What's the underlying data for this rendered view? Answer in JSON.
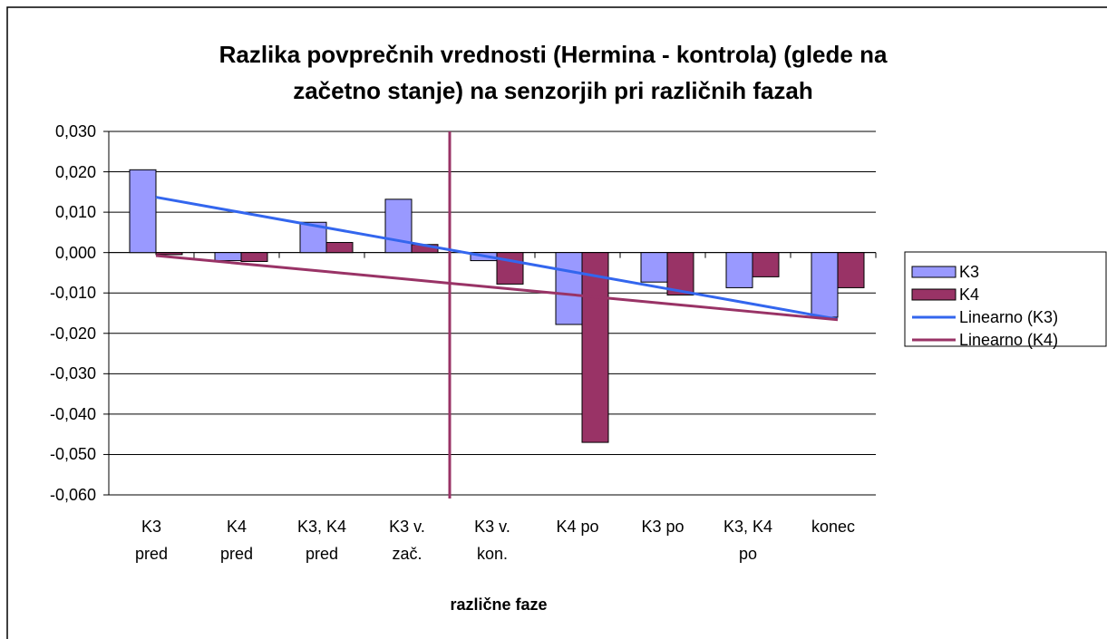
{
  "chart_data": {
    "type": "bar",
    "title": "Razlika povprečnih vrednosti (Hermina - kontrola) (glede na\nzačetno stanje) na senzorjih pri različnih fazah",
    "x_label": "različne faze",
    "categories": [
      "K3\npred",
      "K4\npred",
      "K3, K4\npred",
      "K3 v.\nzač.",
      "K3 v.\nkon.",
      "K4 po",
      "K3 po",
      "K3, K4\npo",
      "konec"
    ],
    "series": [
      {
        "name": "K3",
        "color": "#9999ff",
        "values": [
          0.0205,
          -0.002,
          0.0075,
          0.0132,
          -0.002,
          -0.0178,
          -0.0073,
          -0.0087,
          -0.016
        ]
      },
      {
        "name": "K4",
        "color": "#993366",
        "values": [
          -0.0005,
          -0.0022,
          0.0025,
          0.002,
          -0.0078,
          -0.047,
          -0.0105,
          -0.006,
          -0.0087
        ]
      }
    ],
    "trendlines": [
      {
        "name": "Linearno (K3)",
        "series": 0,
        "color": "#3366ee"
      },
      {
        "name": "Linearno (K4)",
        "series": 1,
        "color": "#993366"
      }
    ],
    "vline": {
      "position": 4,
      "color": "#993366"
    },
    "ylim": [
      -0.06,
      0.03
    ],
    "yticks": [
      {
        "value": 0.03,
        "label": "0,030"
      },
      {
        "value": 0.02,
        "label": "0,020"
      },
      {
        "value": 0.01,
        "label": "0,010"
      },
      {
        "value": 0,
        "label": "0,000"
      },
      {
        "value": -0.01,
        "label": "-0,010"
      },
      {
        "value": -0.02,
        "label": "-0,020"
      },
      {
        "value": -0.03,
        "label": "-0,030"
      },
      {
        "value": -0.04,
        "label": "-0,040"
      },
      {
        "value": -0.05,
        "label": "-0,050"
      },
      {
        "value": -0.06,
        "label": "-0,060"
      }
    ],
    "grid": true,
    "legend": "right"
  }
}
